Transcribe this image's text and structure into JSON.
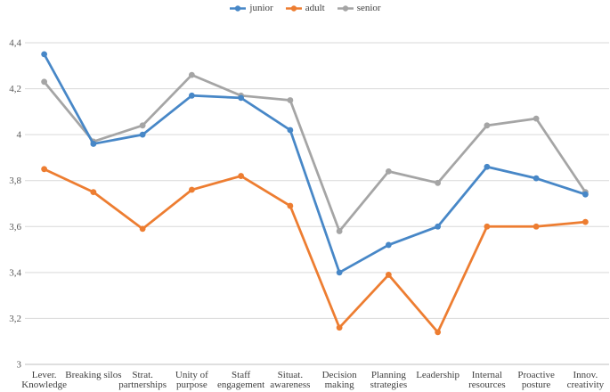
{
  "chart_data": {
    "type": "line",
    "categories": [
      [
        "Lever.",
        "Knowledge"
      ],
      [
        "Breaking silos"
      ],
      [
        "Strat.",
        "partnerships"
      ],
      [
        "Unity of",
        "purpose"
      ],
      [
        "Staff",
        "engagement"
      ],
      [
        "Situat.",
        "awareness"
      ],
      [
        "Decision",
        "making"
      ],
      [
        "Planning",
        "strategies"
      ],
      [
        "Leadership"
      ],
      [
        "Internal",
        "resources"
      ],
      [
        "Proactive",
        "posture"
      ],
      [
        "Innov.",
        "creativity"
      ]
    ],
    "series": [
      {
        "name": "junior",
        "color": "#4787C7",
        "values": [
          4.35,
          3.96,
          4.0,
          4.17,
          4.16,
          4.02,
          3.4,
          3.52,
          3.6,
          3.86,
          3.81,
          3.74
        ]
      },
      {
        "name": "adult",
        "color": "#ED7D31",
        "values": [
          3.85,
          3.75,
          3.59,
          3.76,
          3.82,
          3.69,
          3.16,
          3.39,
          3.14,
          3.6,
          3.6,
          3.62
        ]
      },
      {
        "name": "senior",
        "color": "#A5A5A5",
        "values": [
          4.23,
          3.97,
          4.04,
          4.26,
          4.17,
          4.15,
          3.58,
          3.84,
          3.79,
          4.04,
          4.07,
          3.75
        ]
      }
    ],
    "ylim": [
      3,
      4.4
    ],
    "ytick_values": [
      3,
      3.2,
      3.4,
      3.6,
      3.8,
      4,
      4.2,
      4.4
    ],
    "ytick_labels": [
      "3",
      "3,2",
      "3,4",
      "3,6",
      "3,8",
      "4",
      "4,2",
      "4,4"
    ],
    "grid": true,
    "legend_position": "top-center",
    "title": "",
    "xlabel": "",
    "ylabel": "",
    "colors": {
      "gridline": "#D9D9D9",
      "axis_line": "#BFBFBF",
      "ytick_text": "#595959",
      "xtick_text": "#404040",
      "legend_text": "#3F3F3F"
    }
  }
}
